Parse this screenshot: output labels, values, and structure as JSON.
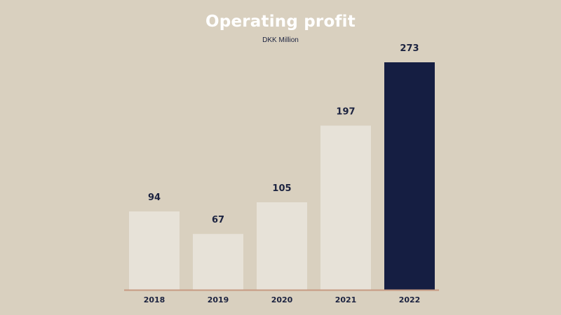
{
  "colors": {
    "background": "#d9d0bf",
    "bar": "#e7e2d8",
    "highlight_bar": "#151e42",
    "baseline": "#c79a82",
    "title": "#ffffff",
    "label": "#1c2340"
  },
  "chart_data": {
    "type": "bar",
    "title": "Operating profit",
    "subtitle": "DKK Million",
    "xlabel": "",
    "ylabel": "",
    "categories": [
      "2018",
      "2019",
      "2020",
      "2021",
      "2022"
    ],
    "values": [
      94,
      67,
      105,
      197,
      273
    ],
    "data_labels": [
      "94",
      "67",
      "105",
      "197",
      "273"
    ],
    "highlight_index": 4,
    "ylim": [
      0,
      273
    ],
    "grid": false,
    "legend": "none"
  }
}
